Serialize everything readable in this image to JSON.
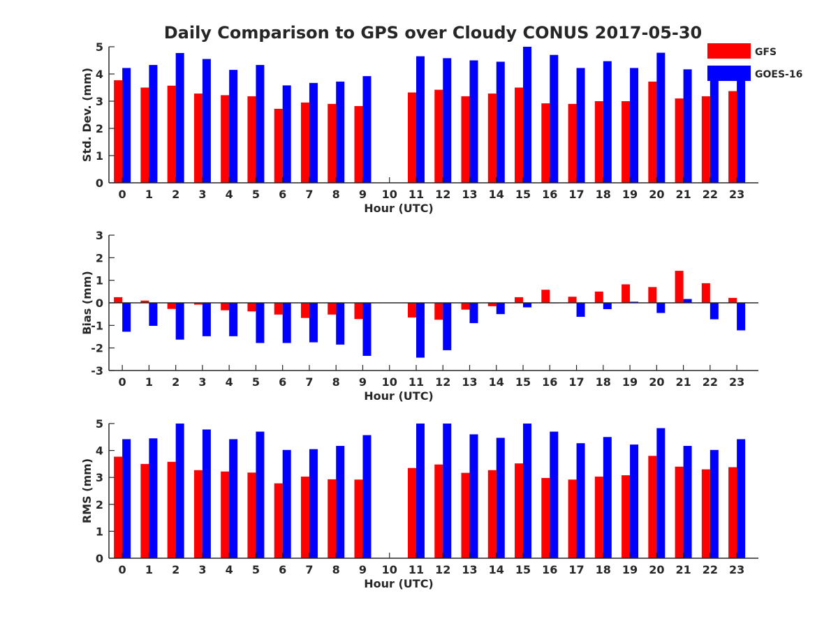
{
  "title": "Daily Comparison to GPS over Cloudy CONUS 2017-05-30",
  "colors": {
    "GFS": "#ff0000",
    "GOES-16": "#0000ff",
    "axis": "#262626"
  },
  "legend": {
    "placement": "top-right",
    "entries": [
      "GFS",
      "GOES-16"
    ]
  },
  "chart_data": [
    {
      "type": "bar",
      "xlabel": "Hour (UTC)",
      "ylabel": "Std. Dev. (mm)",
      "ylim": [
        0,
        5
      ],
      "yticks": [
        0,
        1,
        2,
        3,
        4,
        5
      ],
      "categories": [
        "0",
        "1",
        "2",
        "3",
        "4",
        "5",
        "6",
        "7",
        "8",
        "9",
        "10",
        "11",
        "12",
        "13",
        "14",
        "15",
        "16",
        "17",
        "18",
        "19",
        "20",
        "21",
        "22",
        "23"
      ],
      "series": [
        {
          "name": "GFS",
          "values": [
            3.77,
            3.5,
            3.57,
            3.28,
            3.22,
            3.18,
            2.72,
            2.95,
            2.9,
            2.82,
            null,
            3.32,
            3.42,
            3.18,
            3.28,
            3.5,
            2.92,
            2.9,
            3.0,
            3.0,
            3.72,
            3.1,
            3.18,
            3.37
          ]
        },
        {
          "name": "GOES-16",
          "values": [
            4.22,
            4.33,
            4.77,
            4.55,
            4.15,
            4.33,
            3.58,
            3.67,
            3.72,
            3.92,
            null,
            4.65,
            4.58,
            4.5,
            4.45,
            5.0,
            4.7,
            4.22,
            4.47,
            4.22,
            4.78,
            4.17,
            3.97,
            4.12
          ]
        }
      ]
    },
    {
      "type": "bar",
      "xlabel": "Hour (UTC)",
      "ylabel": "Bias (mm)",
      "ylim": [
        -3,
        3
      ],
      "yticks": [
        -3,
        -2,
        -1,
        0,
        1,
        2,
        3
      ],
      "categories": [
        "0",
        "1",
        "2",
        "3",
        "4",
        "5",
        "6",
        "7",
        "8",
        "9",
        "10",
        "11",
        "12",
        "13",
        "14",
        "15",
        "16",
        "17",
        "18",
        "19",
        "20",
        "21",
        "22",
        "23"
      ],
      "series": [
        {
          "name": "GFS",
          "values": [
            0.25,
            0.1,
            -0.27,
            -0.08,
            -0.33,
            -0.38,
            -0.52,
            -0.67,
            -0.52,
            -0.72,
            null,
            -0.65,
            -0.75,
            -0.3,
            -0.15,
            0.25,
            0.58,
            0.27,
            0.5,
            0.82,
            0.7,
            1.42,
            0.87,
            0.22
          ]
        },
        {
          "name": "GOES-16",
          "values": [
            -1.28,
            -1.02,
            -1.63,
            -1.48,
            -1.48,
            -1.78,
            -1.78,
            -1.75,
            -1.85,
            -2.35,
            null,
            -2.43,
            -2.1,
            -0.9,
            -0.5,
            -0.2,
            0.0,
            -0.62,
            -0.28,
            0.05,
            -0.45,
            0.17,
            -0.73,
            -1.22
          ]
        }
      ]
    },
    {
      "type": "bar",
      "xlabel": "Hour (UTC)",
      "ylabel": "RMS (mm)",
      "ylim": [
        0,
        5
      ],
      "yticks": [
        0,
        1,
        2,
        3,
        4,
        5
      ],
      "categories": [
        "0",
        "1",
        "2",
        "3",
        "4",
        "5",
        "6",
        "7",
        "8",
        "9",
        "10",
        "11",
        "12",
        "13",
        "14",
        "15",
        "16",
        "17",
        "18",
        "19",
        "20",
        "21",
        "22",
        "23"
      ],
      "series": [
        {
          "name": "GFS",
          "values": [
            3.77,
            3.5,
            3.58,
            3.27,
            3.22,
            3.18,
            2.78,
            3.03,
            2.93,
            2.92,
            null,
            3.35,
            3.48,
            3.17,
            3.27,
            3.52,
            2.98,
            2.92,
            3.03,
            3.08,
            3.8,
            3.4,
            3.3,
            3.38
          ]
        },
        {
          "name": "GOES-16",
          "values": [
            4.42,
            4.45,
            5.0,
            4.78,
            4.42,
            4.7,
            4.02,
            4.05,
            4.17,
            4.57,
            null,
            5.0,
            5.0,
            4.6,
            4.47,
            5.0,
            4.7,
            4.27,
            4.5,
            4.22,
            4.83,
            4.17,
            4.02,
            4.42
          ]
        }
      ]
    }
  ]
}
